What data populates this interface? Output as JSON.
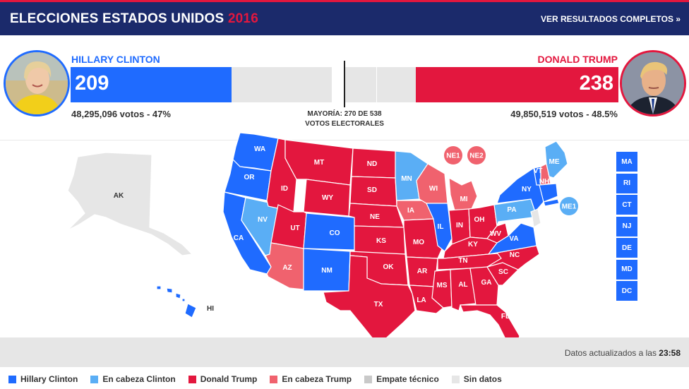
{
  "header": {
    "title": "ELECCIONES ESTADOS UNIDOS",
    "year": "2016",
    "results_link": "VER RESULTADOS COMPLETOS »"
  },
  "candidates": {
    "clinton": {
      "name": "HILLARY CLINTON",
      "electoral_votes": "209",
      "electoral_votes_value": 209,
      "popular": "48,295,096 votos - 47%",
      "color": "#1f6bff"
    },
    "trump": {
      "name": "DONALD TRUMP",
      "electoral_votes": "238",
      "electoral_votes_value": 238,
      "popular": "49,850,519 votos - 48.5%",
      "color": "#e3173e"
    }
  },
  "total_electoral_votes": 538,
  "majority": {
    "line1": "MAYORÍA: 270 DE 538",
    "line2": "VOTOS ELECTORALES"
  },
  "colors": {
    "clinton": "#1f6bff",
    "lean_clinton": "#5aaef5",
    "trump": "#e3173e",
    "lean_trump": "#f0626e",
    "tie": "#c9c9c9",
    "no_data": "#e6e6e6"
  },
  "states": [
    {
      "code": "WA",
      "status": "clinton"
    },
    {
      "code": "OR",
      "status": "clinton"
    },
    {
      "code": "CA",
      "status": "clinton"
    },
    {
      "code": "NV",
      "status": "lean_clinton"
    },
    {
      "code": "ID",
      "status": "trump"
    },
    {
      "code": "MT",
      "status": "trump"
    },
    {
      "code": "WY",
      "status": "trump"
    },
    {
      "code": "UT",
      "status": "trump"
    },
    {
      "code": "AZ",
      "status": "lean_trump"
    },
    {
      "code": "CO",
      "status": "clinton"
    },
    {
      "code": "NM",
      "status": "clinton"
    },
    {
      "code": "ND",
      "status": "trump"
    },
    {
      "code": "SD",
      "status": "trump"
    },
    {
      "code": "NE",
      "status": "trump"
    },
    {
      "code": "KS",
      "status": "trump"
    },
    {
      "code": "OK",
      "status": "trump"
    },
    {
      "code": "TX",
      "status": "trump"
    },
    {
      "code": "MN",
      "status": "lean_clinton"
    },
    {
      "code": "IA",
      "status": "lean_trump"
    },
    {
      "code": "MO",
      "status": "trump"
    },
    {
      "code": "AR",
      "status": "trump"
    },
    {
      "code": "LA",
      "status": "trump"
    },
    {
      "code": "WI",
      "status": "lean_trump"
    },
    {
      "code": "IL",
      "status": "clinton"
    },
    {
      "code": "MI",
      "status": "lean_trump"
    },
    {
      "code": "IN",
      "status": "trump"
    },
    {
      "code": "OH",
      "status": "trump"
    },
    {
      "code": "KY",
      "status": "trump"
    },
    {
      "code": "TN",
      "status": "trump"
    },
    {
      "code": "MS",
      "status": "trump"
    },
    {
      "code": "AL",
      "status": "trump"
    },
    {
      "code": "GA",
      "status": "trump"
    },
    {
      "code": "FL",
      "status": "trump"
    },
    {
      "code": "SC",
      "status": "trump"
    },
    {
      "code": "NC",
      "status": "trump"
    },
    {
      "code": "VA",
      "status": "clinton"
    },
    {
      "code": "WV",
      "status": "trump"
    },
    {
      "code": "PA",
      "status": "lean_clinton"
    },
    {
      "code": "NY",
      "status": "clinton"
    },
    {
      "code": "VT",
      "status": "clinton"
    },
    {
      "code": "NH",
      "status": "lean_trump"
    },
    {
      "code": "ME",
      "status": "lean_clinton"
    },
    {
      "code": "AK",
      "status": "no_data"
    },
    {
      "code": "HI",
      "status": "clinton"
    }
  ],
  "district_bubbles": [
    {
      "code": "NE1",
      "status": "lean_trump"
    },
    {
      "code": "NE2",
      "status": "lean_trump"
    },
    {
      "code": "ME1",
      "status": "lean_clinton"
    }
  ],
  "small_states": [
    "MA",
    "RI",
    "CT",
    "NJ",
    "DE",
    "MD",
    "DC"
  ],
  "updated": {
    "label": "Datos actualizados a las",
    "time": "23:58"
  },
  "legend": [
    {
      "label": "Hillary Clinton",
      "color": "#1f6bff"
    },
    {
      "label": "En cabeza Clinton",
      "color": "#5aaef5"
    },
    {
      "label": "Donald Trump",
      "color": "#e3173e"
    },
    {
      "label": "En cabeza Trump",
      "color": "#f0626e"
    },
    {
      "label": "Empate técnico",
      "color": "#c9c9c9"
    },
    {
      "label": "Sin datos",
      "color": "#e6e6e6"
    }
  ]
}
